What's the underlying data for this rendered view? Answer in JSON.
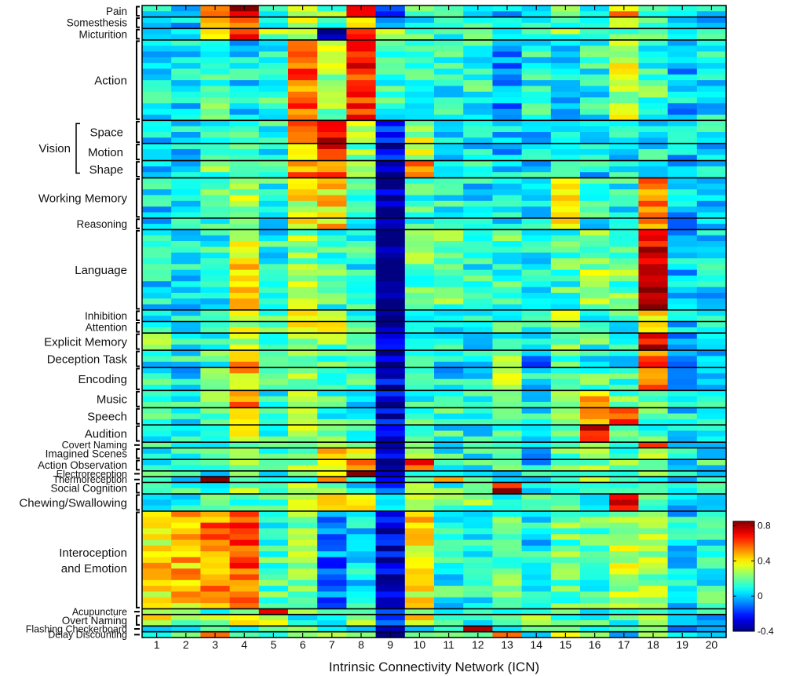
{
  "chart_data": {
    "type": "heatmap",
    "title": "",
    "xlabel": "Intrinsic Connectivity Network (ICN)",
    "ylabel": "",
    "x_categories": [
      "1",
      "2",
      "3",
      "4",
      "5",
      "6",
      "7",
      "8",
      "9",
      "10",
      "11",
      "12",
      "13",
      "14",
      "15",
      "16",
      "17",
      "18",
      "19",
      "20"
    ],
    "colorbar": {
      "min": -0.4,
      "max": 0.85,
      "ticks": [
        {
          "label": "0.8",
          "value": 0.8
        },
        {
          "label": "0.4",
          "value": 0.4
        },
        {
          "label": "0",
          "value": 0
        },
        {
          "label": "-0.4",
          "value": -0.4
        }
      ],
      "colormap": "jet"
    },
    "row_groups": [
      {
        "label": "Pain",
        "rows": 2,
        "base": [
          0.1,
          0.0,
          0.5,
          0.75,
          0.1,
          0.3,
          0.2,
          0.6,
          -0.2,
          0.15,
          0.1,
          0.1,
          0.0,
          0.1,
          0.25,
          0.1,
          0.45,
          0.1,
          0.0,
          0.05
        ]
      },
      {
        "label": "Somesthesis",
        "rows": 2,
        "base": [
          0.05,
          0.0,
          0.4,
          0.65,
          0.1,
          0.3,
          0.1,
          0.5,
          -0.1,
          0.1,
          0.1,
          0.1,
          0.05,
          0.1,
          0.2,
          0.1,
          0.35,
          0.1,
          0.0,
          0.05
        ]
      },
      {
        "label": "Micturition",
        "rows": 2,
        "base": [
          0.0,
          -0.05,
          0.5,
          0.6,
          0.25,
          0.3,
          -0.3,
          0.6,
          0.3,
          0.15,
          0.1,
          0.15,
          0.1,
          0.1,
          0.2,
          0.15,
          0.2,
          0.15,
          0.0,
          0.05
        ]
      },
      {
        "label": "Action",
        "rows": 14,
        "base": [
          0.05,
          0.05,
          0.15,
          0.05,
          0.1,
          0.55,
          0.25,
          0.65,
          0.15,
          0.1,
          0.1,
          0.1,
          -0.05,
          0.1,
          0.05,
          0.1,
          0.3,
          0.15,
          0.0,
          0.05
        ]
      },
      {
        "label": "Space",
        "rows": 4,
        "base": [
          0.0,
          0.05,
          0.15,
          0.15,
          0.1,
          0.55,
          0.75,
          0.25,
          -0.2,
          0.3,
          0.05,
          0.05,
          0.0,
          0.05,
          0.05,
          0.05,
          0.05,
          0.1,
          0.0,
          0.05
        ]
      },
      {
        "label": "Motion",
        "rows": 3,
        "base": [
          0.0,
          0.05,
          0.15,
          0.15,
          0.1,
          0.5,
          0.65,
          0.2,
          -0.25,
          0.3,
          0.05,
          0.05,
          0.0,
          0.05,
          0.05,
          0.05,
          0.05,
          0.1,
          0.0,
          0.05
        ]
      },
      {
        "label": "Shape",
        "rows": 3,
        "base": [
          0.0,
          0.05,
          0.2,
          0.2,
          0.1,
          0.5,
          0.55,
          0.2,
          -0.3,
          0.5,
          0.05,
          0.1,
          0.0,
          0.05,
          0.05,
          0.05,
          0.05,
          0.1,
          0.0,
          0.05
        ]
      },
      {
        "label": "Working Memory",
        "rows": 7,
        "base": [
          0.05,
          0.05,
          0.15,
          0.3,
          0.1,
          0.35,
          0.4,
          0.1,
          -0.35,
          0.15,
          0.1,
          0.05,
          0.05,
          0.05,
          0.4,
          0.1,
          0.1,
          0.55,
          0.0,
          0.05
        ]
      },
      {
        "label": "Reasoning",
        "rows": 2,
        "base": [
          0.05,
          0.05,
          0.15,
          0.3,
          0.1,
          0.35,
          0.45,
          0.1,
          -0.35,
          0.15,
          0.1,
          0.05,
          0.05,
          0.05,
          0.35,
          0.1,
          0.1,
          0.55,
          0.0,
          0.05
        ]
      },
      {
        "label": "Language",
        "rows": 14,
        "base": [
          0.05,
          0.05,
          0.1,
          0.4,
          0.1,
          0.25,
          0.15,
          0.1,
          -0.4,
          0.2,
          0.2,
          0.1,
          0.15,
          0.1,
          0.15,
          0.25,
          0.2,
          0.75,
          0.0,
          0.05
        ]
      },
      {
        "label": "Inhibition",
        "rows": 2,
        "base": [
          0.05,
          0.1,
          0.15,
          0.3,
          0.15,
          0.35,
          0.25,
          0.15,
          -0.35,
          0.15,
          0.1,
          0.1,
          0.1,
          0.1,
          0.25,
          0.15,
          0.1,
          0.35,
          0.0,
          0.05
        ]
      },
      {
        "label": "Attention",
        "rows": 2,
        "base": [
          0.05,
          0.1,
          0.15,
          0.3,
          0.15,
          0.4,
          0.3,
          0.15,
          -0.35,
          0.15,
          0.1,
          0.1,
          0.1,
          0.1,
          0.3,
          0.15,
          0.1,
          0.45,
          0.0,
          0.05
        ]
      },
      {
        "label": "Explicit Memory",
        "rows": 3,
        "base": [
          0.2,
          0.1,
          0.15,
          0.35,
          0.15,
          0.2,
          0.2,
          0.1,
          -0.3,
          0.15,
          0.15,
          0.1,
          0.15,
          0.1,
          0.2,
          0.15,
          0.15,
          0.7,
          0.0,
          0.05
        ]
      },
      {
        "label": "Deception Task",
        "rows": 3,
        "base": [
          0.05,
          0.1,
          0.15,
          0.5,
          0.1,
          0.25,
          0.15,
          0.1,
          -0.35,
          0.1,
          0.05,
          0.1,
          0.25,
          -0.05,
          0.2,
          0.1,
          0.1,
          0.55,
          0.0,
          0.05
        ]
      },
      {
        "label": "Encoding",
        "rows": 4,
        "base": [
          0.1,
          0.05,
          0.15,
          0.45,
          0.1,
          0.2,
          0.15,
          0.1,
          -0.3,
          0.1,
          0.05,
          0.1,
          0.3,
          0.05,
          0.2,
          0.15,
          0.15,
          0.5,
          0.0,
          0.05
        ]
      },
      {
        "label": "Music",
        "rows": 3,
        "base": [
          0.1,
          0.1,
          0.15,
          0.55,
          0.1,
          0.25,
          0.15,
          0.1,
          -0.3,
          0.15,
          0.1,
          0.1,
          0.15,
          0.1,
          0.2,
          0.5,
          0.2,
          0.15,
          0.05,
          0.1
        ]
      },
      {
        "label": "Speech",
        "rows": 3,
        "base": [
          0.1,
          0.1,
          0.15,
          0.35,
          0.1,
          0.35,
          0.15,
          0.1,
          -0.3,
          0.15,
          0.1,
          0.1,
          0.15,
          0.1,
          0.2,
          0.45,
          0.65,
          0.15,
          0.05,
          0.1
        ]
      },
      {
        "label": "Audition",
        "rows": 3,
        "base": [
          0.1,
          0.1,
          0.15,
          0.3,
          0.1,
          0.25,
          0.15,
          0.1,
          -0.3,
          0.15,
          0.1,
          0.1,
          0.15,
          0.1,
          0.2,
          0.75,
          0.2,
          0.15,
          0.05,
          0.1
        ]
      },
      {
        "label": "Covert Naming",
        "rows": 1,
        "base": [
          0.1,
          0.1,
          0.15,
          0.3,
          0.1,
          0.25,
          0.15,
          0.1,
          -0.3,
          0.15,
          0.1,
          0.1,
          0.15,
          0.1,
          0.2,
          0.2,
          0.2,
          0.75,
          0.05,
          0.1
        ]
      },
      {
        "label": "Imagined Scenes",
        "rows": 2,
        "base": [
          0.1,
          0.1,
          0.15,
          0.3,
          0.1,
          0.25,
          0.4,
          0.45,
          -0.2,
          0.2,
          0.1,
          0.1,
          0.25,
          0.0,
          0.2,
          0.35,
          0.2,
          0.2,
          0.05,
          0.1
        ]
      },
      {
        "label": "Action Observation",
        "rows": 2,
        "base": [
          0.1,
          0.1,
          0.15,
          0.2,
          0.1,
          0.3,
          0.3,
          0.45,
          -0.4,
          0.65,
          0.1,
          0.1,
          0.15,
          0.0,
          0.2,
          0.2,
          0.2,
          0.2,
          0.05,
          0.1
        ]
      },
      {
        "label": "Electroreception",
        "rows": 1,
        "base": [
          0.1,
          0.1,
          0.1,
          0.2,
          0.1,
          0.2,
          0.25,
          0.8,
          -0.3,
          0.2,
          0.1,
          0.1,
          0.1,
          0.1,
          0.2,
          0.2,
          0.2,
          0.2,
          0.05,
          0.1
        ]
      },
      {
        "label": "Thermoreception",
        "rows": 1,
        "base": [
          0.1,
          0.1,
          0.8,
          0.2,
          0.1,
          -0.05,
          0.45,
          0.2,
          -0.3,
          0.2,
          0.5,
          0.1,
          0.1,
          0.1,
          0.2,
          0.2,
          0.2,
          0.2,
          0.05,
          0.1
        ]
      },
      {
        "label": "Social Cognition",
        "rows": 2,
        "base": [
          0.1,
          0.1,
          0.15,
          0.3,
          0.05,
          0.25,
          0.15,
          0.1,
          -0.2,
          0.35,
          0.15,
          0.1,
          0.75,
          0.1,
          0.15,
          0.15,
          0.2,
          0.2,
          0.05,
          0.1
        ]
      },
      {
        "label": "Chewing/Swallowing",
        "rows": 3,
        "base": [
          0.1,
          0.1,
          0.15,
          0.2,
          0.1,
          0.25,
          0.55,
          0.3,
          0.0,
          0.4,
          0.15,
          0.2,
          0.1,
          0.1,
          0.2,
          0.15,
          0.65,
          0.15,
          0.05,
          0.1
        ]
      },
      {
        "label": "Interoception and Emotion",
        "rows": 17,
        "base": [
          0.4,
          0.45,
          0.55,
          0.6,
          0.15,
          0.25,
          -0.1,
          0.05,
          -0.3,
          0.4,
          0.1,
          0.1,
          0.2,
          0.05,
          0.2,
          0.15,
          0.3,
          0.25,
          0.05,
          0.1
        ]
      },
      {
        "label": "Acupuncture",
        "rows": 1,
        "base": [
          0.3,
          0.15,
          0.15,
          0.2,
          0.65,
          0.15,
          0.1,
          0.1,
          -0.2,
          0.15,
          0.1,
          0.1,
          0.2,
          0.1,
          0.1,
          0.1,
          0.1,
          0.1,
          0.0,
          0.05
        ]
      },
      {
        "label": "Overt Naming",
        "rows": 2,
        "base": [
          0.4,
          0.2,
          0.2,
          0.3,
          0.4,
          0.15,
          0.15,
          0.2,
          -0.2,
          0.35,
          0.1,
          0.1,
          0.3,
          0.4,
          0.15,
          0.1,
          0.15,
          0.2,
          0.0,
          0.05
        ]
      },
      {
        "label": "Flashing Checkerboard",
        "rows": 1,
        "base": [
          0.05,
          0.1,
          0.1,
          0.15,
          0.1,
          0.15,
          0.1,
          0.1,
          -0.25,
          0.1,
          0.1,
          0.7,
          0.15,
          0.1,
          0.15,
          0.1,
          0.1,
          0.1,
          0.0,
          0.05
        ]
      },
      {
        "label": "Delay Discounting",
        "rows": 1,
        "base": [
          0.1,
          0.1,
          0.45,
          0.05,
          0.1,
          0.2,
          0.35,
          0.2,
          -0.4,
          0.15,
          0.1,
          0.1,
          0.55,
          0.05,
          0.5,
          0.15,
          -0.1,
          0.4,
          0.0,
          0.05
        ]
      }
    ],
    "bracketed_labels": {
      "label": "Vision",
      "members": [
        "Space",
        "Motion",
        "Shape"
      ]
    }
  }
}
